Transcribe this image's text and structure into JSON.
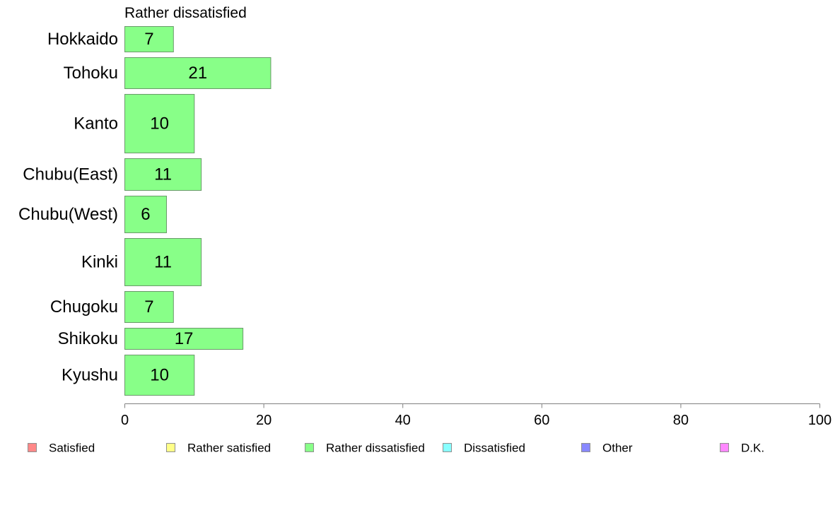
{
  "chart_data": {
    "type": "bar",
    "orientation": "horizontal",
    "title": "Rather dissatisfied",
    "categories": [
      "Hokkaido",
      "Tohoku",
      "Kanto",
      "Chubu(East)",
      "Chubu(West)",
      "Kinki",
      "Chugoku",
      "Shikoku",
      "Kyushu"
    ],
    "values": [
      7,
      21,
      10,
      11,
      6,
      11,
      7,
      17,
      10
    ],
    "xlim": [
      0,
      100
    ],
    "xticks": [
      "0",
      "20",
      "40",
      "60",
      "80",
      "100"
    ],
    "bar_color": "#88ff88",
    "legend": [
      {
        "label": "Satisfied",
        "color": "#ff8888"
      },
      {
        "label": "Rather satisfied",
        "color": "#ffff88"
      },
      {
        "label": "Rather dissatisfied",
        "color": "#88ff88"
      },
      {
        "label": "Dissatisfied",
        "color": "#88ffff"
      },
      {
        "label": "Other",
        "color": "#8888ff"
      },
      {
        "label": "D.K.",
        "color": "#ff88ff"
      }
    ],
    "legend_position": "bottom",
    "grid": false
  }
}
